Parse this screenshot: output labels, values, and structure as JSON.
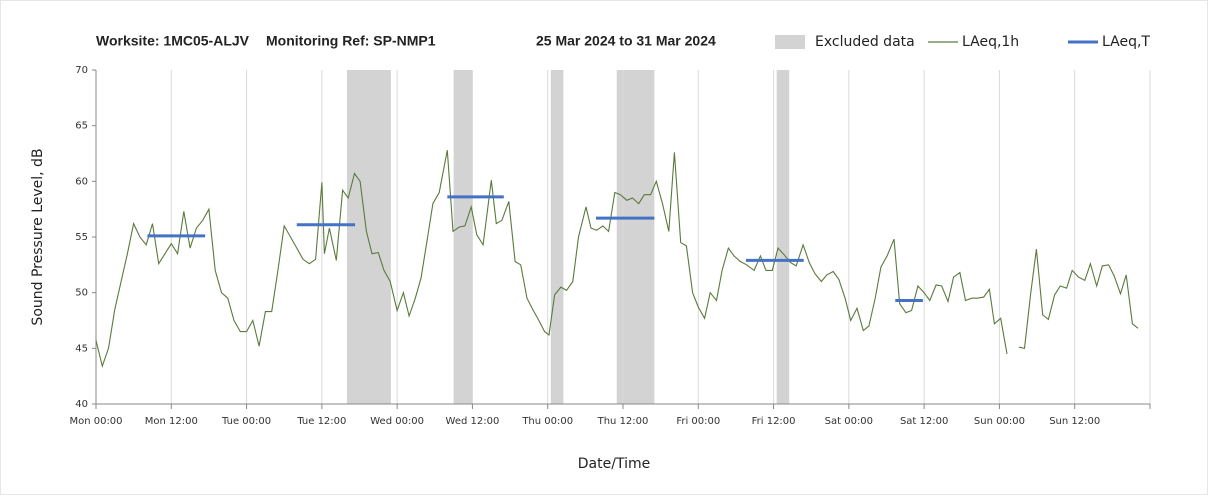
{
  "chart_data": {
    "type": "line",
    "title": "Worksite: 1MC05-ALJV",
    "monitoring_ref": "Monitoring Ref: SP-NMP1",
    "period": "25 Mar 2024 to 31 Mar 2024",
    "xlabel": "Date/Time",
    "ylabel": "Sound Pressure Level, dB",
    "xlim": [
      0,
      168
    ],
    "ylim": [
      40,
      70
    ],
    "xticks": [
      {
        "value": 0,
        "label": "Mon 00:00"
      },
      {
        "value": 12,
        "label": "Mon 12:00"
      },
      {
        "value": 24,
        "label": "Tue 00:00"
      },
      {
        "value": 36,
        "label": "Tue 12:00"
      },
      {
        "value": 48,
        "label": "Wed 00:00"
      },
      {
        "value": 60,
        "label": "Wed 12:00"
      },
      {
        "value": 72,
        "label": "Thu 00:00"
      },
      {
        "value": 84,
        "label": "Thu 12:00"
      },
      {
        "value": 96,
        "label": "Fri 00:00"
      },
      {
        "value": 108,
        "label": "Fri 12:00"
      },
      {
        "value": 120,
        "label": "Sat 00:00"
      },
      {
        "value": 132,
        "label": "Sat 12:00"
      },
      {
        "value": 144,
        "label": "Sun 00:00"
      },
      {
        "value": 156,
        "label": "Sun 12:00"
      },
      {
        "value": 168,
        "label": ""
      }
    ],
    "yticks": [
      40,
      45,
      50,
      55,
      60,
      65,
      70
    ],
    "grid": "x",
    "x": [
      0,
      1,
      2,
      3,
      4,
      5,
      6,
      7,
      8,
      9,
      10,
      11,
      12,
      13,
      14,
      15,
      16,
      17,
      18,
      19,
      20,
      21,
      22,
      23,
      24,
      25,
      26,
      27,
      28,
      29,
      30,
      31,
      32,
      33,
      34,
      35,
      36,
      36.4,
      37.2,
      38.3,
      39.3,
      40.2,
      41.2,
      42.1,
      43.1,
      44,
      45,
      45.9,
      46.9,
      48,
      49,
      49.9,
      50.9,
      51.8,
      52.8,
      53.7,
      54.7,
      56,
      56.9,
      57.9,
      58.8,
      59.8,
      60.7,
      61.7,
      63,
      63.8,
      64.7,
      65.8,
      66.8,
      67.7,
      68.7,
      69.6,
      70.6,
      71.5,
      72.2,
      73.1,
      74.1,
      75,
      76,
      76.9,
      78.1,
      78.9,
      79.8,
      80.8,
      81.7,
      82.7,
      83.6,
      84.6,
      85.5,
      86.5,
      87.4,
      88.4,
      89.3,
      90.3,
      91.3,
      92.2,
      93.2,
      94.1,
      95.1,
      96,
      97,
      97.9,
      98.9,
      99.8,
      100.8,
      101.7,
      102.7,
      103.7,
      104.9,
      105.9,
      106.8,
      107.8,
      108.7,
      109.7,
      110.7,
      111.6,
      112.7,
      113.7,
      114.6,
      115.6,
      116.5,
      117.5,
      118.4,
      119.4,
      120.3,
      121.3,
      122.3,
      123.2,
      124.2,
      125.1,
      126.1,
      127.2,
      128.1,
      129.1,
      130,
      131,
      132,
      132.9,
      133.9,
      134.8,
      135.8,
      136.7,
      137.7,
      138.6,
      139.6,
      140.5,
      141.5,
      142.4,
      143.2,
      144.2,
      145.2,
      146.2,
      147.1,
      148,
      149,
      149.9,
      150.9,
      151.8,
      152.8,
      153.7,
      154.7,
      155.6,
      156.6,
      157.6,
      158.5,
      159.5,
      160.4,
      161.4,
      162.3,
      163.3,
      164.2,
      165.2,
      166.1
    ],
    "series": [
      {
        "name": "LAeq,1h",
        "color": "#5b7a3c",
        "values": [
          45.7,
          43.4,
          45,
          48.5,
          51,
          53.5,
          56.2,
          55,
          54.3,
          56.2,
          52.6,
          53.5,
          54.4,
          53.5,
          57.3,
          54,
          55.8,
          56.5,
          57.5,
          52,
          50,
          49.5,
          47.5,
          46.5,
          46.5,
          47.5,
          45.2,
          48.3,
          48.3,
          52,
          56,
          55,
          54,
          53,
          52.6,
          53,
          59.9,
          53.5,
          55.8,
          52.9,
          59.2,
          58.5,
          60.7,
          60,
          55.5,
          53.5,
          53.6,
          52,
          51,
          48.4,
          50,
          47.9,
          49.5,
          51.3,
          54.8,
          58,
          59,
          62.8,
          55.5,
          55.9,
          56,
          57.7,
          55.2,
          54.3,
          60.1,
          56.2,
          56.5,
          58.2,
          52.8,
          52.5,
          49.5,
          48.5,
          47.5,
          46.5,
          46.2,
          49.8,
          50.5,
          50.2,
          51,
          55,
          57.7,
          55.8,
          55.6,
          56,
          55.5,
          59,
          58.8,
          58.3,
          58.5,
          58,
          58.8,
          58.8,
          60,
          58,
          55.5,
          62.6,
          54.5,
          54.2,
          50,
          48.7,
          47.7,
          50,
          49.3,
          52,
          54,
          53.3,
          52.8,
          52.5,
          52,
          53.3,
          52,
          52,
          54,
          53.4,
          52.7,
          52.4,
          54.3,
          52.7,
          51.7,
          51,
          51.6,
          51.9,
          51.2,
          49.5,
          47.5,
          48.6,
          46.6,
          47,
          49.5,
          52.3,
          53.3,
          54.8,
          49,
          48.2,
          48.4,
          50.6,
          50,
          49.3,
          50.7,
          50.6,
          49.2,
          51.4,
          51.8,
          49.3,
          49.5,
          49.5,
          49.6,
          50.3,
          47.2,
          47.7,
          44.5,
          null,
          45.1,
          45,
          50,
          53.9,
          48,
          47.6,
          49.8,
          50.6,
          50.4,
          52,
          51.4,
          51.1,
          52.6,
          50.6,
          52.4,
          52.5,
          51.5,
          49.9,
          51.6,
          47.2,
          46.8
        ]
      }
    ],
    "excluded": {
      "name": "Excluded data",
      "color": "#d3d3d3",
      "ranges": [
        {
          "start": 40,
          "end": 47
        },
        {
          "start": 57,
          "end": 60
        },
        {
          "start": 72.5,
          "end": 74.5
        },
        {
          "start": 83,
          "end": 89
        },
        {
          "start": 108.5,
          "end": 110.5
        }
      ]
    },
    "laeq_t": {
      "name": "LAeq,T",
      "color": "#4472c4",
      "segments": [
        {
          "start": 8.2,
          "end": 17.4,
          "value": 55.1
        },
        {
          "start": 32,
          "end": 41.3,
          "value": 56.1
        },
        {
          "start": 56,
          "end": 65,
          "value": 58.6
        },
        {
          "start": 79.7,
          "end": 89,
          "value": 56.7
        },
        {
          "start": 103.6,
          "end": 112.8,
          "value": 52.9
        },
        {
          "start": 127.4,
          "end": 131.8,
          "value": 49.3
        }
      ]
    }
  }
}
